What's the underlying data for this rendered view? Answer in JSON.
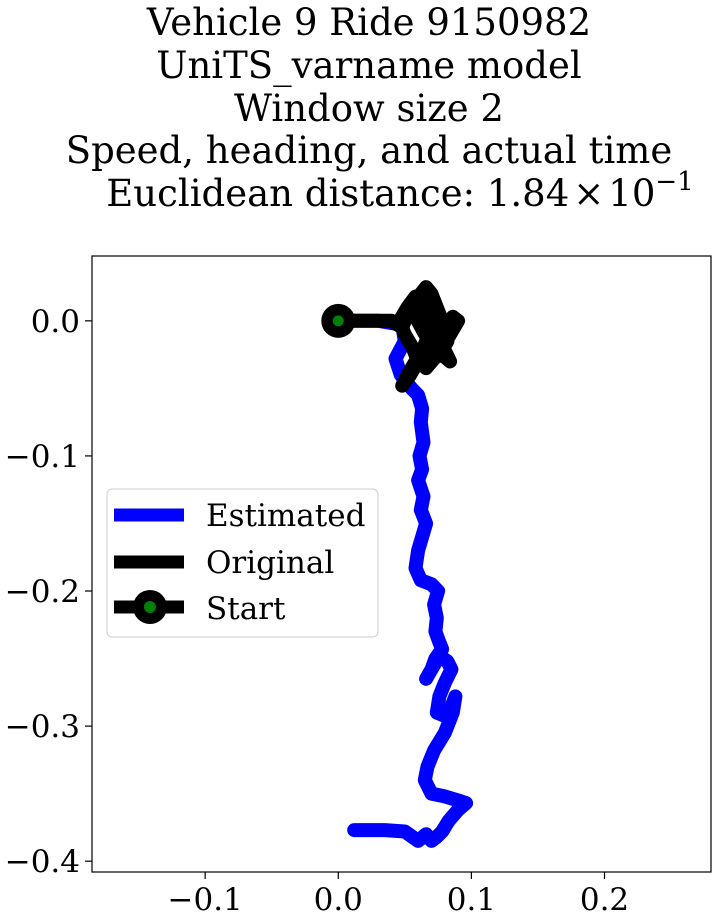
{
  "chart_data": {
    "type": "line",
    "title_lines": [
      "Vehicle 9 Ride 9150982",
      "UniTS_varname model",
      "Window size 2",
      "Speed, heading, and actual time",
      "Euclidean distance: 1.84×10⁻¹"
    ],
    "title_math": {
      "prefix": "Euclidean distance: ",
      "mantissa": "1.84",
      "times": "×",
      "base": "10",
      "exponent": "−1"
    },
    "xlabel": "",
    "ylabel": "",
    "xlim": [
      -0.185,
      0.28
    ],
    "ylim": [
      -0.408,
      0.048
    ],
    "xticks": [
      -0.1,
      0.0,
      0.1,
      0.2
    ],
    "xtick_labels": [
      "−0.1",
      "0.0",
      "0.1",
      "0.2"
    ],
    "yticks": [
      0.0,
      -0.1,
      -0.2,
      -0.3,
      -0.4
    ],
    "ytick_labels": [
      "0.0",
      "−0.1",
      "−0.2",
      "−0.3",
      "−0.4"
    ],
    "grid": false,
    "legend": {
      "placement": "center-left",
      "entries": [
        {
          "label": "Estimated",
          "color": "#0000ff",
          "marker": "none"
        },
        {
          "label": "Original",
          "color": "#000000",
          "marker": "none"
        },
        {
          "label": "Start",
          "color": "#000000",
          "marker": "circle",
          "marker_face": "#008000"
        }
      ]
    },
    "series": [
      {
        "name": "Estimated",
        "color": "#0000ff",
        "x": [
          0.0,
          0.03,
          0.048,
          0.05,
          0.043,
          0.047,
          0.055,
          0.06,
          0.063,
          0.062,
          0.064,
          0.061,
          0.063,
          0.06,
          0.064,
          0.062,
          0.066,
          0.063,
          0.06,
          0.058,
          0.062,
          0.07,
          0.075,
          0.072,
          0.074,
          0.073,
          0.076,
          0.078,
          0.073,
          0.07,
          0.066,
          0.07,
          0.076,
          0.082,
          0.085,
          0.08,
          0.076,
          0.074,
          0.079,
          0.084,
          0.088,
          0.086,
          0.08,
          0.072,
          0.067,
          0.065,
          0.07,
          0.08,
          0.09,
          0.096,
          0.09,
          0.083,
          0.078,
          0.074,
          0.07,
          0.066,
          0.06,
          0.05,
          0.035,
          0.02,
          0.012
        ],
        "y": [
          0.0,
          0.0,
          -0.003,
          -0.015,
          -0.028,
          -0.04,
          -0.05,
          -0.055,
          -0.065,
          -0.075,
          -0.09,
          -0.1,
          -0.11,
          -0.118,
          -0.13,
          -0.14,
          -0.15,
          -0.16,
          -0.17,
          -0.183,
          -0.192,
          -0.195,
          -0.2,
          -0.21,
          -0.22,
          -0.23,
          -0.238,
          -0.243,
          -0.25,
          -0.258,
          -0.265,
          -0.258,
          -0.248,
          -0.252,
          -0.258,
          -0.268,
          -0.278,
          -0.29,
          -0.292,
          -0.288,
          -0.278,
          -0.29,
          -0.305,
          -0.318,
          -0.33,
          -0.34,
          -0.35,
          -0.352,
          -0.355,
          -0.357,
          -0.362,
          -0.37,
          -0.378,
          -0.382,
          -0.385,
          -0.38,
          -0.385,
          -0.378,
          -0.377,
          -0.377,
          -0.377
        ]
      },
      {
        "name": "Original",
        "color": "#000000",
        "x": [
          0.0,
          0.02,
          0.04,
          0.048,
          0.052,
          0.058,
          0.062,
          0.066,
          0.07,
          0.074,
          0.078,
          0.082,
          0.086,
          0.09,
          0.084,
          0.078,
          0.072,
          0.066,
          0.06,
          0.056,
          0.05,
          0.046,
          0.052,
          0.058,
          0.064,
          0.07,
          0.076,
          0.08,
          0.084,
          0.078,
          0.072,
          0.068,
          0.064,
          0.058,
          0.052,
          0.048,
          0.054,
          0.06,
          0.066,
          0.072,
          0.078,
          0.074,
          0.07,
          0.066,
          0.062,
          0.058,
          0.064,
          0.07,
          0.076,
          0.082,
          0.078,
          0.074,
          0.07,
          0.066
        ],
        "y": [
          0.0,
          0.0,
          0.0,
          -0.005,
          0.005,
          0.015,
          0.02,
          0.025,
          0.02,
          0.01,
          0.0,
          -0.005,
          0.003,
          0.0,
          -0.01,
          -0.02,
          -0.028,
          -0.035,
          -0.03,
          -0.02,
          -0.01,
          0.0,
          0.01,
          0.018,
          0.012,
          0.0,
          -0.012,
          -0.022,
          -0.03,
          -0.025,
          -0.018,
          -0.01,
          -0.02,
          -0.03,
          -0.04,
          -0.048,
          -0.04,
          -0.03,
          -0.02,
          -0.01,
          -0.002,
          0.006,
          0.014,
          0.02,
          0.012,
          0.003,
          -0.008,
          -0.018,
          -0.026,
          -0.015,
          -0.005,
          0.004,
          0.012,
          0.018
        ]
      }
    ],
    "start_point": {
      "x": 0.0,
      "y": 0.0
    }
  }
}
